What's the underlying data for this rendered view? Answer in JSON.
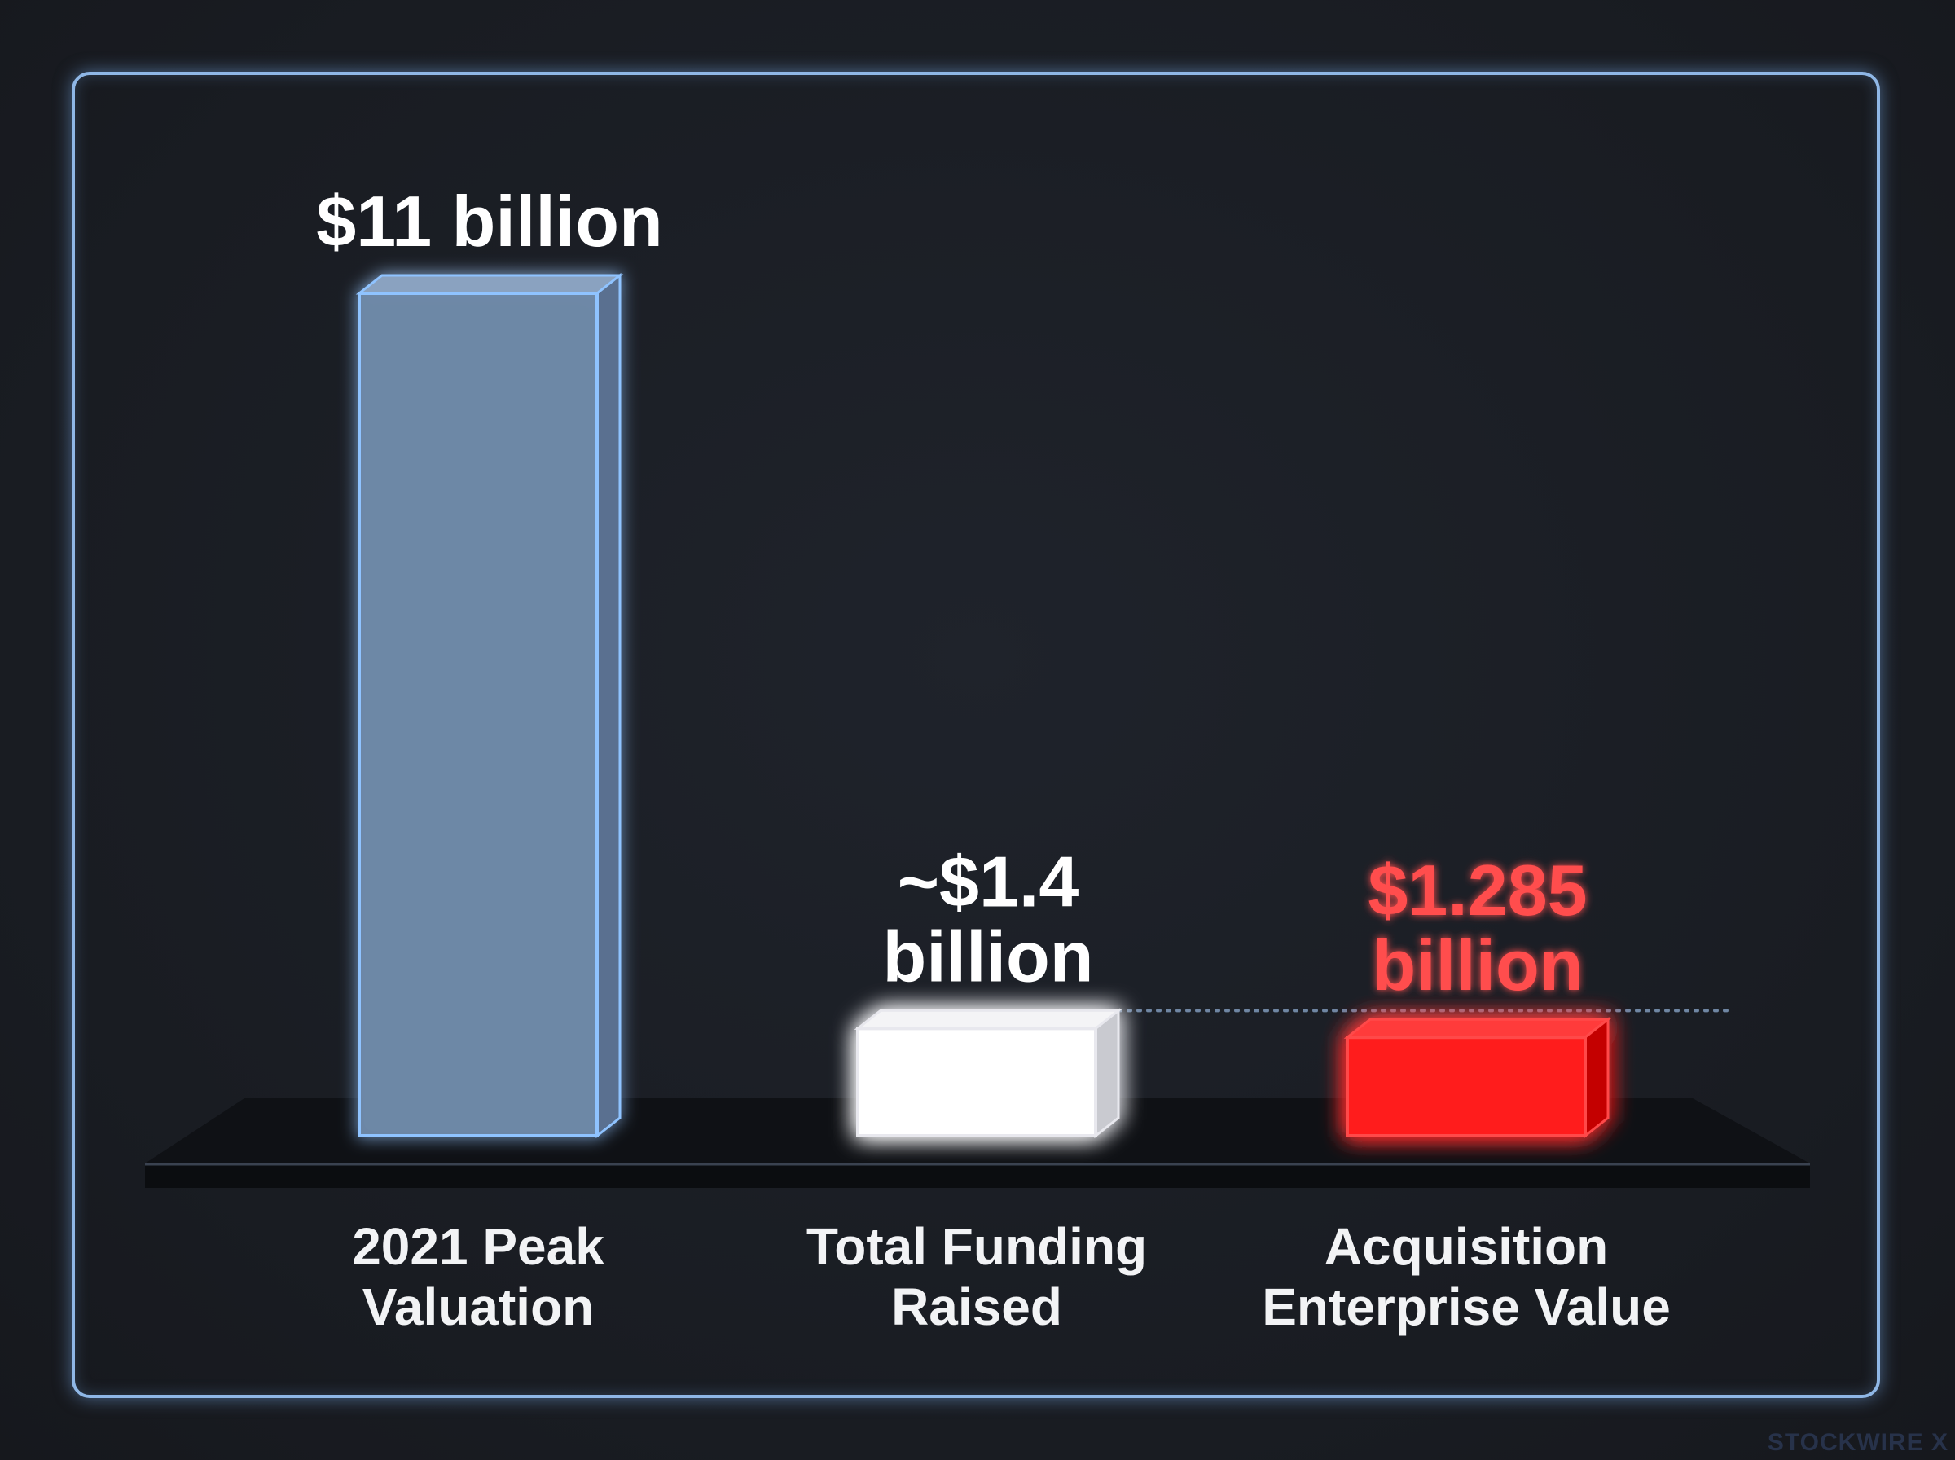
{
  "chart_data": {
    "type": "bar",
    "categories": [
      "2021 Peak\nValuation",
      "Total Funding\nRaised",
      "Acquisition\nEnterprise Value"
    ],
    "values": [
      11,
      1.4,
      1.285
    ],
    "value_labels": [
      "$11 billion",
      "~$1.4\nbillion",
      "$1.285\nbillion"
    ],
    "colors": [
      "#6e88a6",
      "#ffffff",
      "#ff1a1a"
    ],
    "edge_colors": [
      "#8fc3ff",
      "#e8e8ee",
      "#ff4a4a"
    ],
    "label_colors": [
      "#ffffff",
      "#ffffff",
      "#ff4d4d"
    ],
    "reference_line": {
      "value": 1.4,
      "style": "dotted",
      "color": "#6f86a3"
    },
    "ylim": [
      0,
      11
    ],
    "grid": false,
    "legend": "none"
  },
  "watermark": "STOCKWIRE X"
}
